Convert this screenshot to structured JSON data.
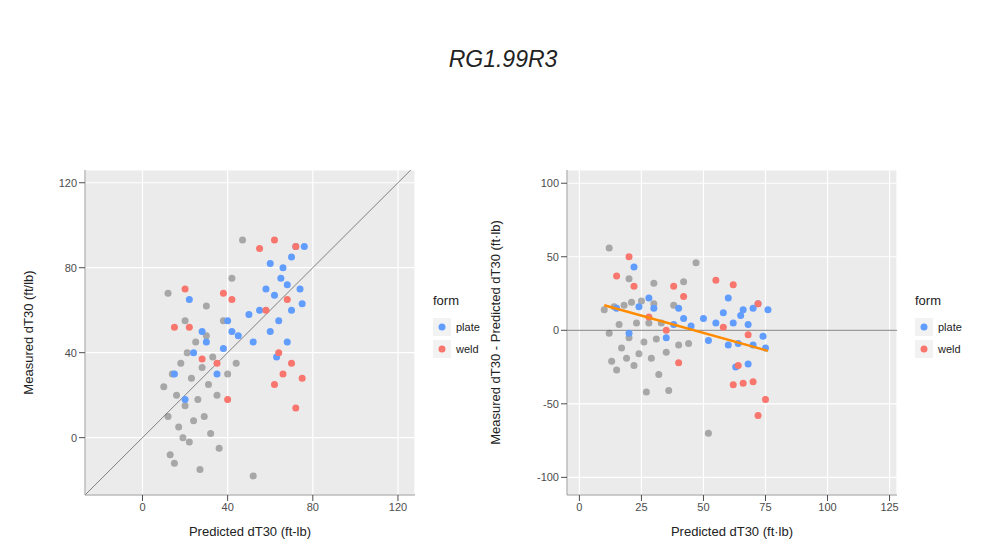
{
  "title": "RG1.99R3",
  "chart_data": [
    {
      "type": "scatter",
      "x_label": "Predicted dT30 (ft-lb)",
      "y_label": "Measured dT30 (ft/lb)",
      "legend_title": "form",
      "legend": "right",
      "grid": true,
      "xlim": [
        -27,
        128
      ],
      "ylim": [
        -27,
        126
      ],
      "xticks": [
        0,
        40,
        80,
        120
      ],
      "yticks": [
        0,
        40,
        80,
        120
      ],
      "diagonal": {
        "x": [
          -27,
          128
        ],
        "y": [
          -27,
          128
        ],
        "color": "#808080"
      },
      "series": [
        {
          "color": "#555555",
          "marker": "circle",
          "x": [
            10,
            12,
            13,
            14,
            15,
            16,
            17,
            18,
            19,
            20,
            21,
            22,
            23,
            24,
            25,
            26,
            27,
            28,
            29,
            30,
            31,
            32,
            33,
            35,
            36,
            38,
            40,
            42,
            44,
            47,
            52,
            12,
            20,
            30
          ],
          "y": [
            24,
            10,
            -8,
            30,
            -12,
            20,
            5,
            35,
            0,
            15,
            40,
            -2,
            28,
            8,
            45,
            18,
            -15,
            33,
            10,
            48,
            25,
            2,
            38,
            20,
            -5,
            55,
            30,
            75,
            35,
            93,
            -18,
            68,
            55,
            62
          ]
        },
        {
          "name": "plate",
          "color": "#619CFF",
          "marker": "circle",
          "x": [
            15,
            20,
            22,
            24,
            28,
            30,
            35,
            38,
            40,
            42,
            45,
            50,
            52,
            55,
            58,
            60,
            62,
            64,
            65,
            66,
            68,
            70,
            70,
            72,
            74,
            75,
            76,
            68,
            63,
            60
          ],
          "y": [
            30,
            18,
            65,
            40,
            50,
            45,
            30,
            42,
            55,
            50,
            48,
            58,
            45,
            60,
            70,
            50,
            67,
            55,
            75,
            80,
            72,
            85,
            60,
            90,
            70,
            63,
            90,
            45,
            38,
            82
          ]
        },
        {
          "name": "weld",
          "color": "#F8766D",
          "marker": "circle",
          "x": [
            15,
            20,
            22,
            28,
            35,
            38,
            40,
            42,
            55,
            58,
            62,
            62,
            64,
            66,
            70,
            72,
            72,
            75,
            68
          ],
          "y": [
            52,
            70,
            52,
            37,
            35,
            68,
            18,
            65,
            89,
            60,
            93,
            25,
            40,
            30,
            35,
            90,
            14,
            28,
            65
          ]
        }
      ]
    },
    {
      "type": "scatter",
      "x_label": "Predicted dT30 (ft·lb)",
      "y_label": "Measured dT30 - Predicted dT30 (ft·lb)",
      "legend_title": "form",
      "legend": "right",
      "grid": true,
      "xlim": [
        -5,
        128
      ],
      "ylim": [
        -112,
        109
      ],
      "xticks": [
        0,
        25,
        50,
        75,
        100,
        125
      ],
      "yticks": [
        -100,
        -50,
        0,
        50,
        100
      ],
      "hline": {
        "y": 0,
        "color": "#808080"
      },
      "fit": {
        "x": [
          10,
          76
        ],
        "y": [
          17,
          -14
        ],
        "color": "#FF8C00"
      },
      "series": [
        {
          "color": "#555555",
          "marker": "circle",
          "x": [
            10,
            12,
            13,
            14,
            15,
            16,
            17,
            18,
            19,
            20,
            21,
            22,
            23,
            24,
            25,
            26,
            27,
            28,
            29,
            30,
            31,
            32,
            33,
            35,
            36,
            38,
            40,
            42,
            44,
            47,
            52,
            12,
            20,
            30
          ],
          "y": [
            14,
            -2,
            -21,
            16,
            -27,
            4,
            -12,
            17,
            -19,
            -5,
            19,
            -24,
            5,
            -16,
            20,
            -8,
            -42,
            5,
            -19,
            18,
            -6,
            -30,
            5,
            -15,
            -41,
            17,
            -10,
            33,
            -9,
            46,
            -70,
            56,
            35,
            32
          ]
        },
        {
          "name": "plate",
          "color": "#619CFF",
          "marker": "circle",
          "x": [
            15,
            20,
            22,
            24,
            28,
            30,
            35,
            38,
            40,
            42,
            45,
            50,
            52,
            55,
            58,
            60,
            62,
            64,
            65,
            66,
            68,
            70,
            70,
            72,
            74,
            75,
            76,
            68,
            63,
            60
          ],
          "y": [
            15,
            -2,
            43,
            16,
            22,
            15,
            -5,
            4,
            15,
            8,
            3,
            8,
            -7,
            5,
            12,
            -10,
            5,
            -9,
            10,
            14,
            4,
            15,
            -10,
            18,
            -4,
            -12,
            14,
            -23,
            -25,
            22
          ]
        },
        {
          "name": "weld",
          "color": "#F8766D",
          "marker": "circle",
          "x": [
            15,
            20,
            22,
            28,
            35,
            38,
            40,
            42,
            55,
            58,
            62,
            62,
            64,
            66,
            70,
            72,
            72,
            75,
            68
          ],
          "y": [
            37,
            50,
            30,
            9,
            0,
            30,
            -22,
            23,
            34,
            2,
            31,
            -37,
            -24,
            -36,
            -35,
            18,
            -58,
            -47,
            -3
          ]
        }
      ]
    }
  ]
}
